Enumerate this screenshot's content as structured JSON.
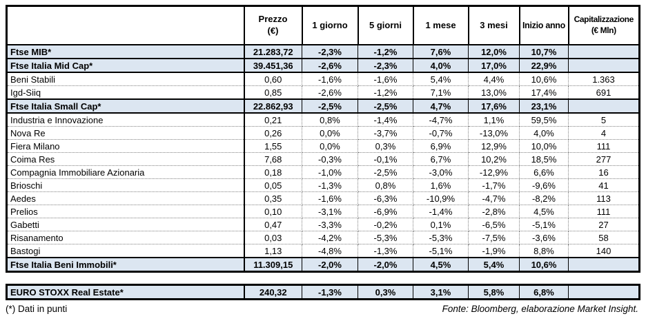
{
  "colors": {
    "index_row_bg": "#dce6f1",
    "grid_solid": "#000000",
    "grid_dotted": "#7f7f7f"
  },
  "main_table": {
    "columns": [
      {
        "key": "name",
        "label": "",
        "sub": ""
      },
      {
        "key": "prezzo",
        "label": "Prezzo",
        "sub": "(€)"
      },
      {
        "key": "1-giorno",
        "label": "1 giorno",
        "sub": ""
      },
      {
        "key": "5-giorni",
        "label": "5 giorni",
        "sub": ""
      },
      {
        "key": "1-mese",
        "label": "1 mese",
        "sub": ""
      },
      {
        "key": "3-mesi",
        "label": "3 mesi",
        "sub": ""
      },
      {
        "key": "inizio-anno",
        "label": "Inizio anno",
        "sub": ""
      },
      {
        "key": "capitalizzazione",
        "label": "Capitalizzazione",
        "sub": "(€ Mln)"
      }
    ],
    "rows": [
      {
        "name": "Ftse MIB*",
        "type": "index",
        "values": [
          "21.283,72",
          "-2,3%",
          "-1,2%",
          "7,6%",
          "12,0%",
          "10,7%",
          ""
        ]
      },
      {
        "name": "Ftse Italia Mid Cap*",
        "type": "index",
        "values": [
          "39.451,36",
          "-2,6%",
          "-2,3%",
          "4,0%",
          "17,0%",
          "22,9%",
          ""
        ]
      },
      {
        "name": "Beni Stabili",
        "type": "stock",
        "values": [
          "0,60",
          "-1,6%",
          "-1,6%",
          "5,4%",
          "4,4%",
          "10,6%",
          "1.363"
        ]
      },
      {
        "name": "Igd-Siiq",
        "type": "stock",
        "values": [
          "0,85",
          "-2,6%",
          "-1,2%",
          "7,1%",
          "13,0%",
          "17,4%",
          "691"
        ]
      },
      {
        "name": "Ftse Italia Small Cap*",
        "type": "index",
        "values": [
          "22.862,93",
          "-2,5%",
          "-2,5%",
          "4,7%",
          "17,6%",
          "23,1%",
          ""
        ]
      },
      {
        "name": "Industria e Innovazione",
        "type": "stock",
        "values": [
          "0,21",
          "0,8%",
          "-1,4%",
          "-4,7%",
          "1,1%",
          "59,5%",
          "5"
        ]
      },
      {
        "name": "Nova Re",
        "type": "stock",
        "values": [
          "0,26",
          "0,0%",
          "-3,7%",
          "-0,7%",
          "-13,0%",
          "4,0%",
          "4"
        ]
      },
      {
        "name": "Fiera Milano",
        "type": "stock",
        "values": [
          "1,55",
          "0,0%",
          "0,3%",
          "6,9%",
          "12,9%",
          "10,0%",
          "111"
        ]
      },
      {
        "name": "Coima Res",
        "type": "stock",
        "values": [
          "7,68",
          "-0,3%",
          "-0,1%",
          "6,7%",
          "10,2%",
          "18,5%",
          "277"
        ]
      },
      {
        "name": "Compagnia Immobiliare Azionaria",
        "type": "stock",
        "values": [
          "0,18",
          "-1,0%",
          "-2,5%",
          "-3,0%",
          "-12,9%",
          "6,6%",
          "16"
        ]
      },
      {
        "name": "Brioschi",
        "type": "stock",
        "values": [
          "0,05",
          "-1,3%",
          "0,8%",
          "1,6%",
          "-1,7%",
          "-9,6%",
          "41"
        ]
      },
      {
        "name": "Aedes",
        "type": "stock",
        "values": [
          "0,35",
          "-1,6%",
          "-6,3%",
          "-10,9%",
          "-4,7%",
          "-8,2%",
          "113"
        ]
      },
      {
        "name": "Prelios",
        "type": "stock",
        "values": [
          "0,10",
          "-3,1%",
          "-6,9%",
          "-1,4%",
          "-2,8%",
          "4,5%",
          "111"
        ]
      },
      {
        "name": "Gabetti",
        "type": "stock",
        "values": [
          "0,47",
          "-3,3%",
          "-0,2%",
          "0,1%",
          "-6,5%",
          "-5,1%",
          "27"
        ]
      },
      {
        "name": "Risanamento",
        "type": "stock",
        "values": [
          "0,03",
          "-4,2%",
          "-5,3%",
          "-5,3%",
          "-7,5%",
          "-3,6%",
          "58"
        ]
      },
      {
        "name": "Bastogi",
        "type": "stock",
        "values": [
          "1,13",
          "-4,8%",
          "-1,3%",
          "-5,1%",
          "-1,9%",
          "8,8%",
          "140"
        ]
      },
      {
        "name": "Ftse Italia Beni Immobili*",
        "type": "index",
        "values": [
          "11.309,15",
          "-2,0%",
          "-2,0%",
          "4,5%",
          "5,4%",
          "10,6%",
          ""
        ]
      }
    ]
  },
  "euro_table": {
    "rows": [
      {
        "name": "EURO STOXX Real Estate*",
        "type": "index",
        "values": [
          "240,32",
          "-1,3%",
          "0,3%",
          "3,1%",
          "5,8%",
          "6,8%",
          ""
        ]
      }
    ]
  },
  "footer": {
    "note": "(*) Dati in punti",
    "source": "Fonte: Bloomberg, elaborazione Market Insight."
  }
}
